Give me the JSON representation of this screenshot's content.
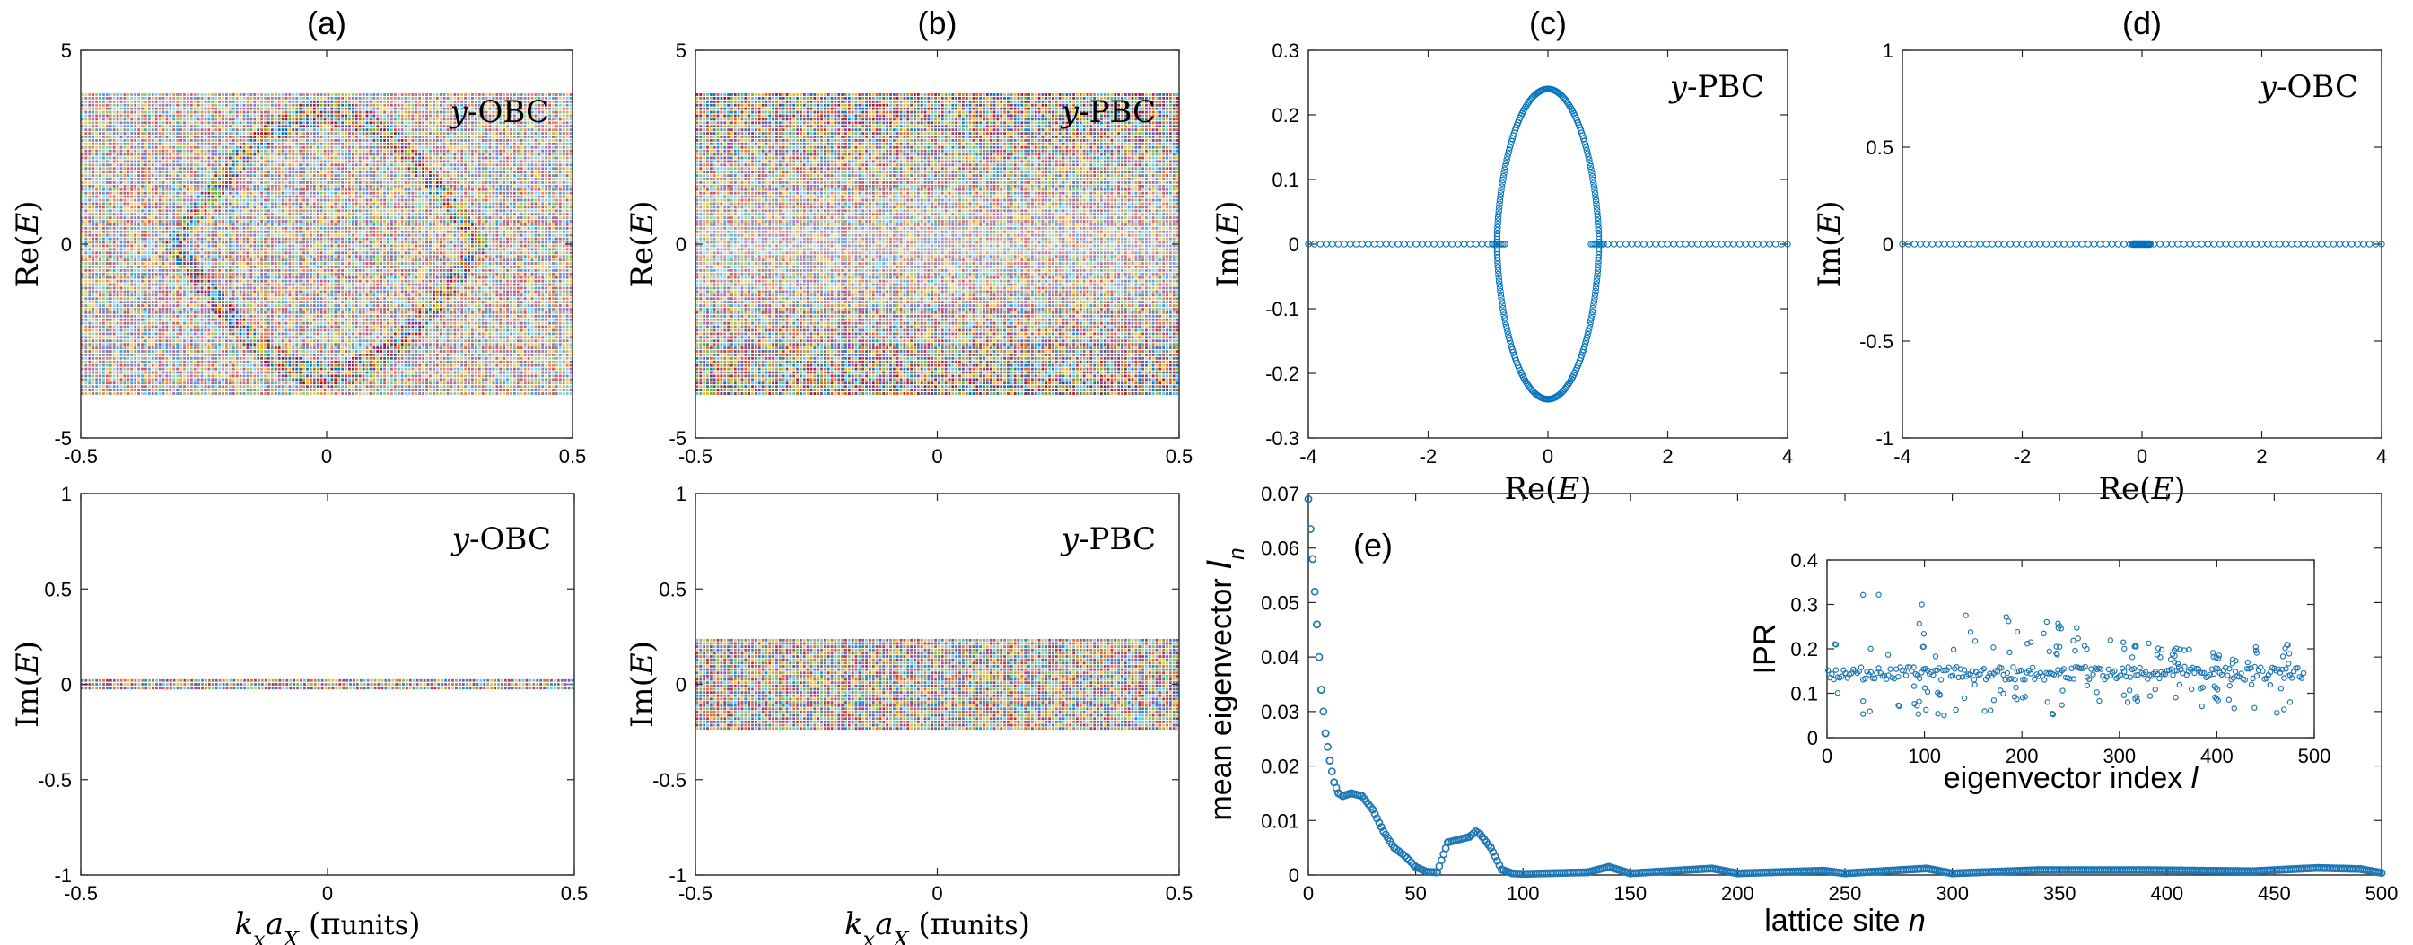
{
  "chart_data": [
    {
      "id": "a_top",
      "type": "scatter",
      "panel_label": "(a)",
      "annotation": "y-OBC",
      "ylabel": "Re(E)",
      "xlim": [
        -0.5,
        0.5
      ],
      "ylim": [
        -5,
        5
      ],
      "xticks": [
        "-0.5",
        "0",
        "0.5"
      ],
      "yticks": [
        "-5",
        "0",
        "5"
      ],
      "band_range": [
        -3.9,
        3.9
      ]
    },
    {
      "id": "b_top",
      "type": "scatter",
      "panel_label": "(b)",
      "annotation": "y-PBC",
      "ylabel": "Re(E)",
      "xlim": [
        -0.5,
        0.5
      ],
      "ylim": [
        -5,
        5
      ],
      "xticks": [
        "-0.5",
        "0",
        "0.5"
      ],
      "yticks": [
        "-5",
        "0",
        "5"
      ],
      "band_range": [
        -3.9,
        3.9
      ]
    },
    {
      "id": "c",
      "type": "scatter",
      "panel_label": "(c)",
      "annotation": "y-PBC",
      "xlabel": "Re(E)",
      "ylabel": "Im(E)",
      "xlim": [
        -4,
        4
      ],
      "ylim": [
        -0.3,
        0.3
      ],
      "xticks": [
        "-4",
        "-2",
        "0",
        "2",
        "4"
      ],
      "yticks": [
        "-0.3",
        "-0.2",
        "-0.1",
        "0",
        "0.1",
        "0.2",
        "0.3"
      ],
      "description_points": {
        "real_axis_range": [
          -4,
          4
        ],
        "loop_re_range": [
          -0.85,
          0.85
        ],
        "loop_im_max": 0.24
      }
    },
    {
      "id": "d",
      "type": "scatter",
      "panel_label": "(d)",
      "annotation": "y-OBC",
      "xlabel": "Re(E)",
      "ylabel": "Im(E)",
      "xlim": [
        -4,
        4
      ],
      "ylim": [
        -1,
        1
      ],
      "xticks": [
        "-4",
        "-2",
        "0",
        "2",
        "4"
      ],
      "yticks": [
        "-1",
        "-0.5",
        "0",
        "0.5",
        "1"
      ],
      "description_points": {
        "real_axis_range": [
          -4,
          4
        ],
        "im": 0
      }
    },
    {
      "id": "a_bottom",
      "type": "scatter",
      "annotation": "y-OBC",
      "xlabel": "k_x a_X (π units)",
      "ylabel": "Im(E)",
      "xlim": [
        -0.5,
        0.5
      ],
      "ylim": [
        -1,
        1
      ],
      "xticks": [
        "-0.5",
        "0",
        "0.5"
      ],
      "yticks": [
        "-1",
        "-0.5",
        "0",
        "0.5",
        "1"
      ],
      "band_range": [
        -0.03,
        0.03
      ]
    },
    {
      "id": "b_bottom",
      "type": "scatter",
      "annotation": "y-PBC",
      "xlabel": "k_x a_X (π units)",
      "ylabel": "Im(E)",
      "xlim": [
        -0.5,
        0.5
      ],
      "ylim": [
        -1,
        1
      ],
      "xticks": [
        "-0.5",
        "0",
        "0.5"
      ],
      "yticks": [
        "-1",
        "-0.5",
        "0",
        "0.5",
        "1"
      ],
      "band_range": [
        -0.24,
        0.24
      ]
    },
    {
      "id": "e",
      "type": "scatter",
      "panel_label": "(e)",
      "xlabel": "lattice site n",
      "ylabel": "mean eigenvector I_n",
      "xlim": [
        0,
        500
      ],
      "ylim": [
        0,
        0.07
      ],
      "xticks": [
        "0",
        "50",
        "100",
        "150",
        "200",
        "250",
        "300",
        "350",
        "400",
        "450",
        "500"
      ],
      "yticks": [
        "0",
        "0.01",
        "0.02",
        "0.03",
        "0.04",
        "0.05",
        "0.06",
        "0.07"
      ],
      "x": [
        0,
        2,
        4,
        6,
        8,
        10,
        12,
        14,
        16,
        20,
        25,
        30,
        35,
        40,
        45,
        50,
        55,
        60,
        65,
        70,
        75,
        78,
        80,
        85,
        90,
        95,
        100,
        130,
        140,
        150,
        188,
        200,
        240,
        250,
        288,
        300,
        340,
        390,
        440,
        470,
        490,
        500
      ],
      "y": [
        0.069,
        0.058,
        0.046,
        0.034,
        0.026,
        0.021,
        0.017,
        0.015,
        0.0145,
        0.015,
        0.0145,
        0.012,
        0.008,
        0.005,
        0.0035,
        0.0015,
        0.0006,
        0.0005,
        0.006,
        0.0065,
        0.007,
        0.008,
        0.0075,
        0.005,
        0.001,
        0.0003,
        0.0002,
        0.0005,
        0.0015,
        0.0003,
        0.0012,
        0.0003,
        0.0008,
        0.0003,
        0.0012,
        0.0003,
        0.0009,
        0.0009,
        0.0007,
        0.0013,
        0.0011,
        0.0004
      ]
    },
    {
      "id": "e_inset",
      "type": "scatter",
      "xlabel": "eigenvector index l",
      "ylabel": "IPR",
      "xlim": [
        0,
        500
      ],
      "ylim": [
        0,
        0.4
      ],
      "xticks": [
        "0",
        "100",
        "200",
        "300",
        "400",
        "500"
      ],
      "yticks": [
        "0",
        "0.1",
        "0.2",
        "0.3",
        "0.4"
      ],
      "main_band": 0.145,
      "upper_trend": [
        [
          20,
          0.34
        ],
        [
          100,
          0.3
        ],
        [
          200,
          0.28
        ],
        [
          300,
          0.23
        ],
        [
          400,
          0.19
        ],
        [
          480,
          0.22
        ]
      ]
    }
  ]
}
